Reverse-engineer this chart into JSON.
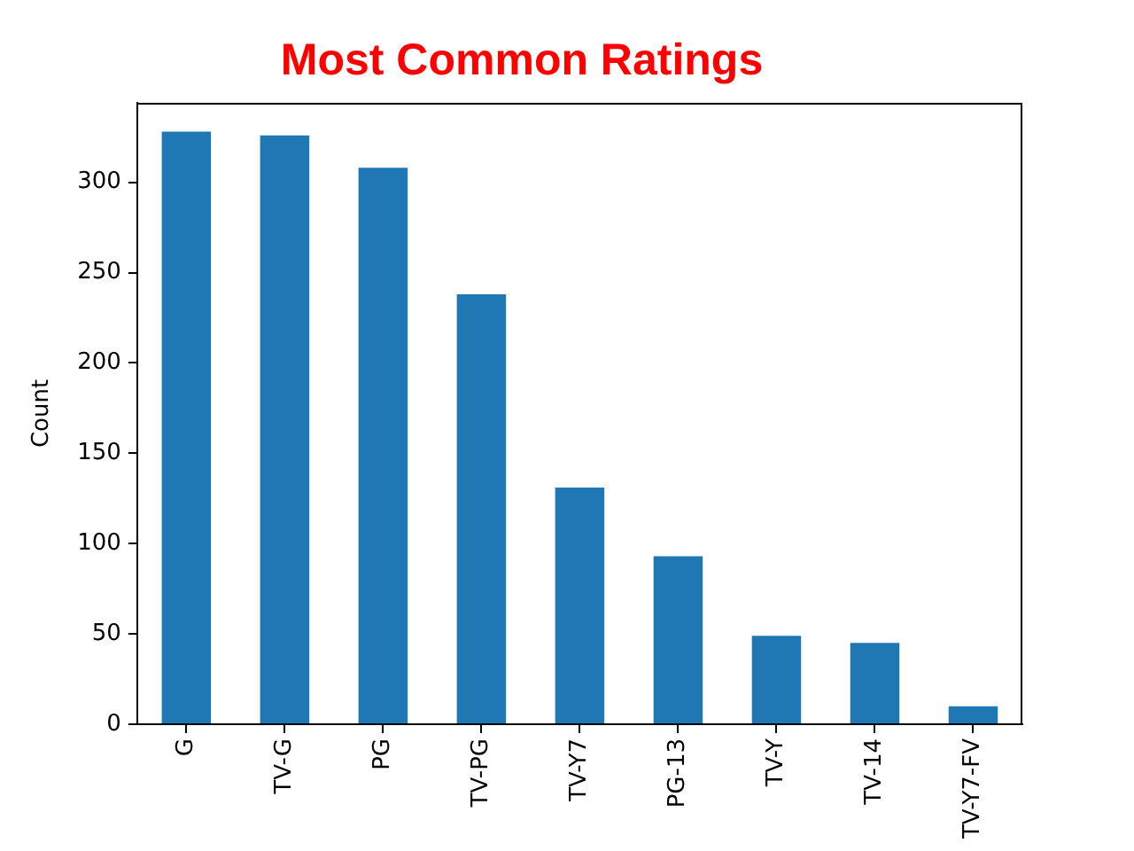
{
  "chart_data": {
    "type": "bar",
    "title": "Most Common Ratings",
    "ylabel": "Count",
    "categories": [
      "G",
      "TV-G",
      "PG",
      "TV-PG",
      "TV-Y7",
      "PG-13",
      "TV-Y",
      "TV-14",
      "TV-Y7-FV"
    ],
    "values": [
      328,
      326,
      308,
      238,
      131,
      93,
      49,
      45,
      10
    ],
    "color": "#1f77b4",
    "ylim": [
      0,
      344
    ],
    "yticks": [
      0,
      50,
      100,
      150,
      200,
      250,
      300
    ]
  }
}
